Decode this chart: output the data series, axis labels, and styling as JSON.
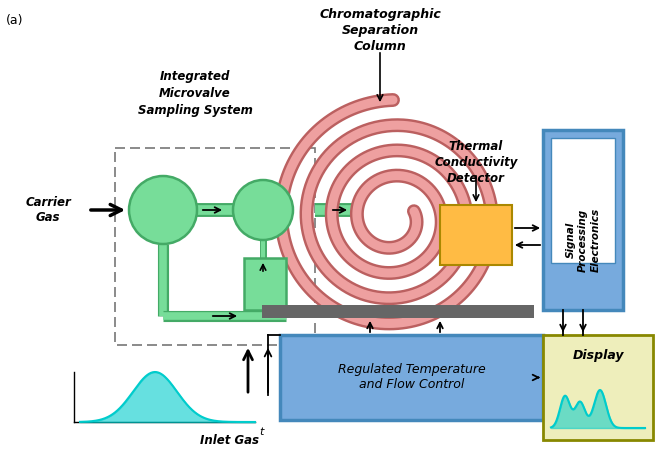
{
  "title_label": "(a)",
  "bg_color": "#ffffff",
  "label_carrier_gas": "Carrier\nGas",
  "label_inlet_gas": "Inlet Gas",
  "label_integrated": "Integrated\nMicrovalve\nSampling System",
  "label_chrom_col": "Chromatographic\nSeparation\nColumn",
  "label_thermal": "Thermal\nConductivity\nDetector",
  "label_signal": "Signal\nProcessing\nElectronics",
  "label_regulated": "Regulated Temperature\nand Flow Control",
  "label_display": "Display",
  "label_t": "t",
  "color_green_fill": "#77DD99",
  "color_green_dark": "#44AA66",
  "color_spiral_outer": "#CC7777",
  "color_spiral_inner": "#EEA0A0",
  "color_orange": "#FFBB44",
  "color_blue_box": "#77AADD",
  "color_yellow_box": "#EEEEBB",
  "color_dark_bar": "#666666",
  "color_cyan": "#00CCCC",
  "color_black": "#000000"
}
